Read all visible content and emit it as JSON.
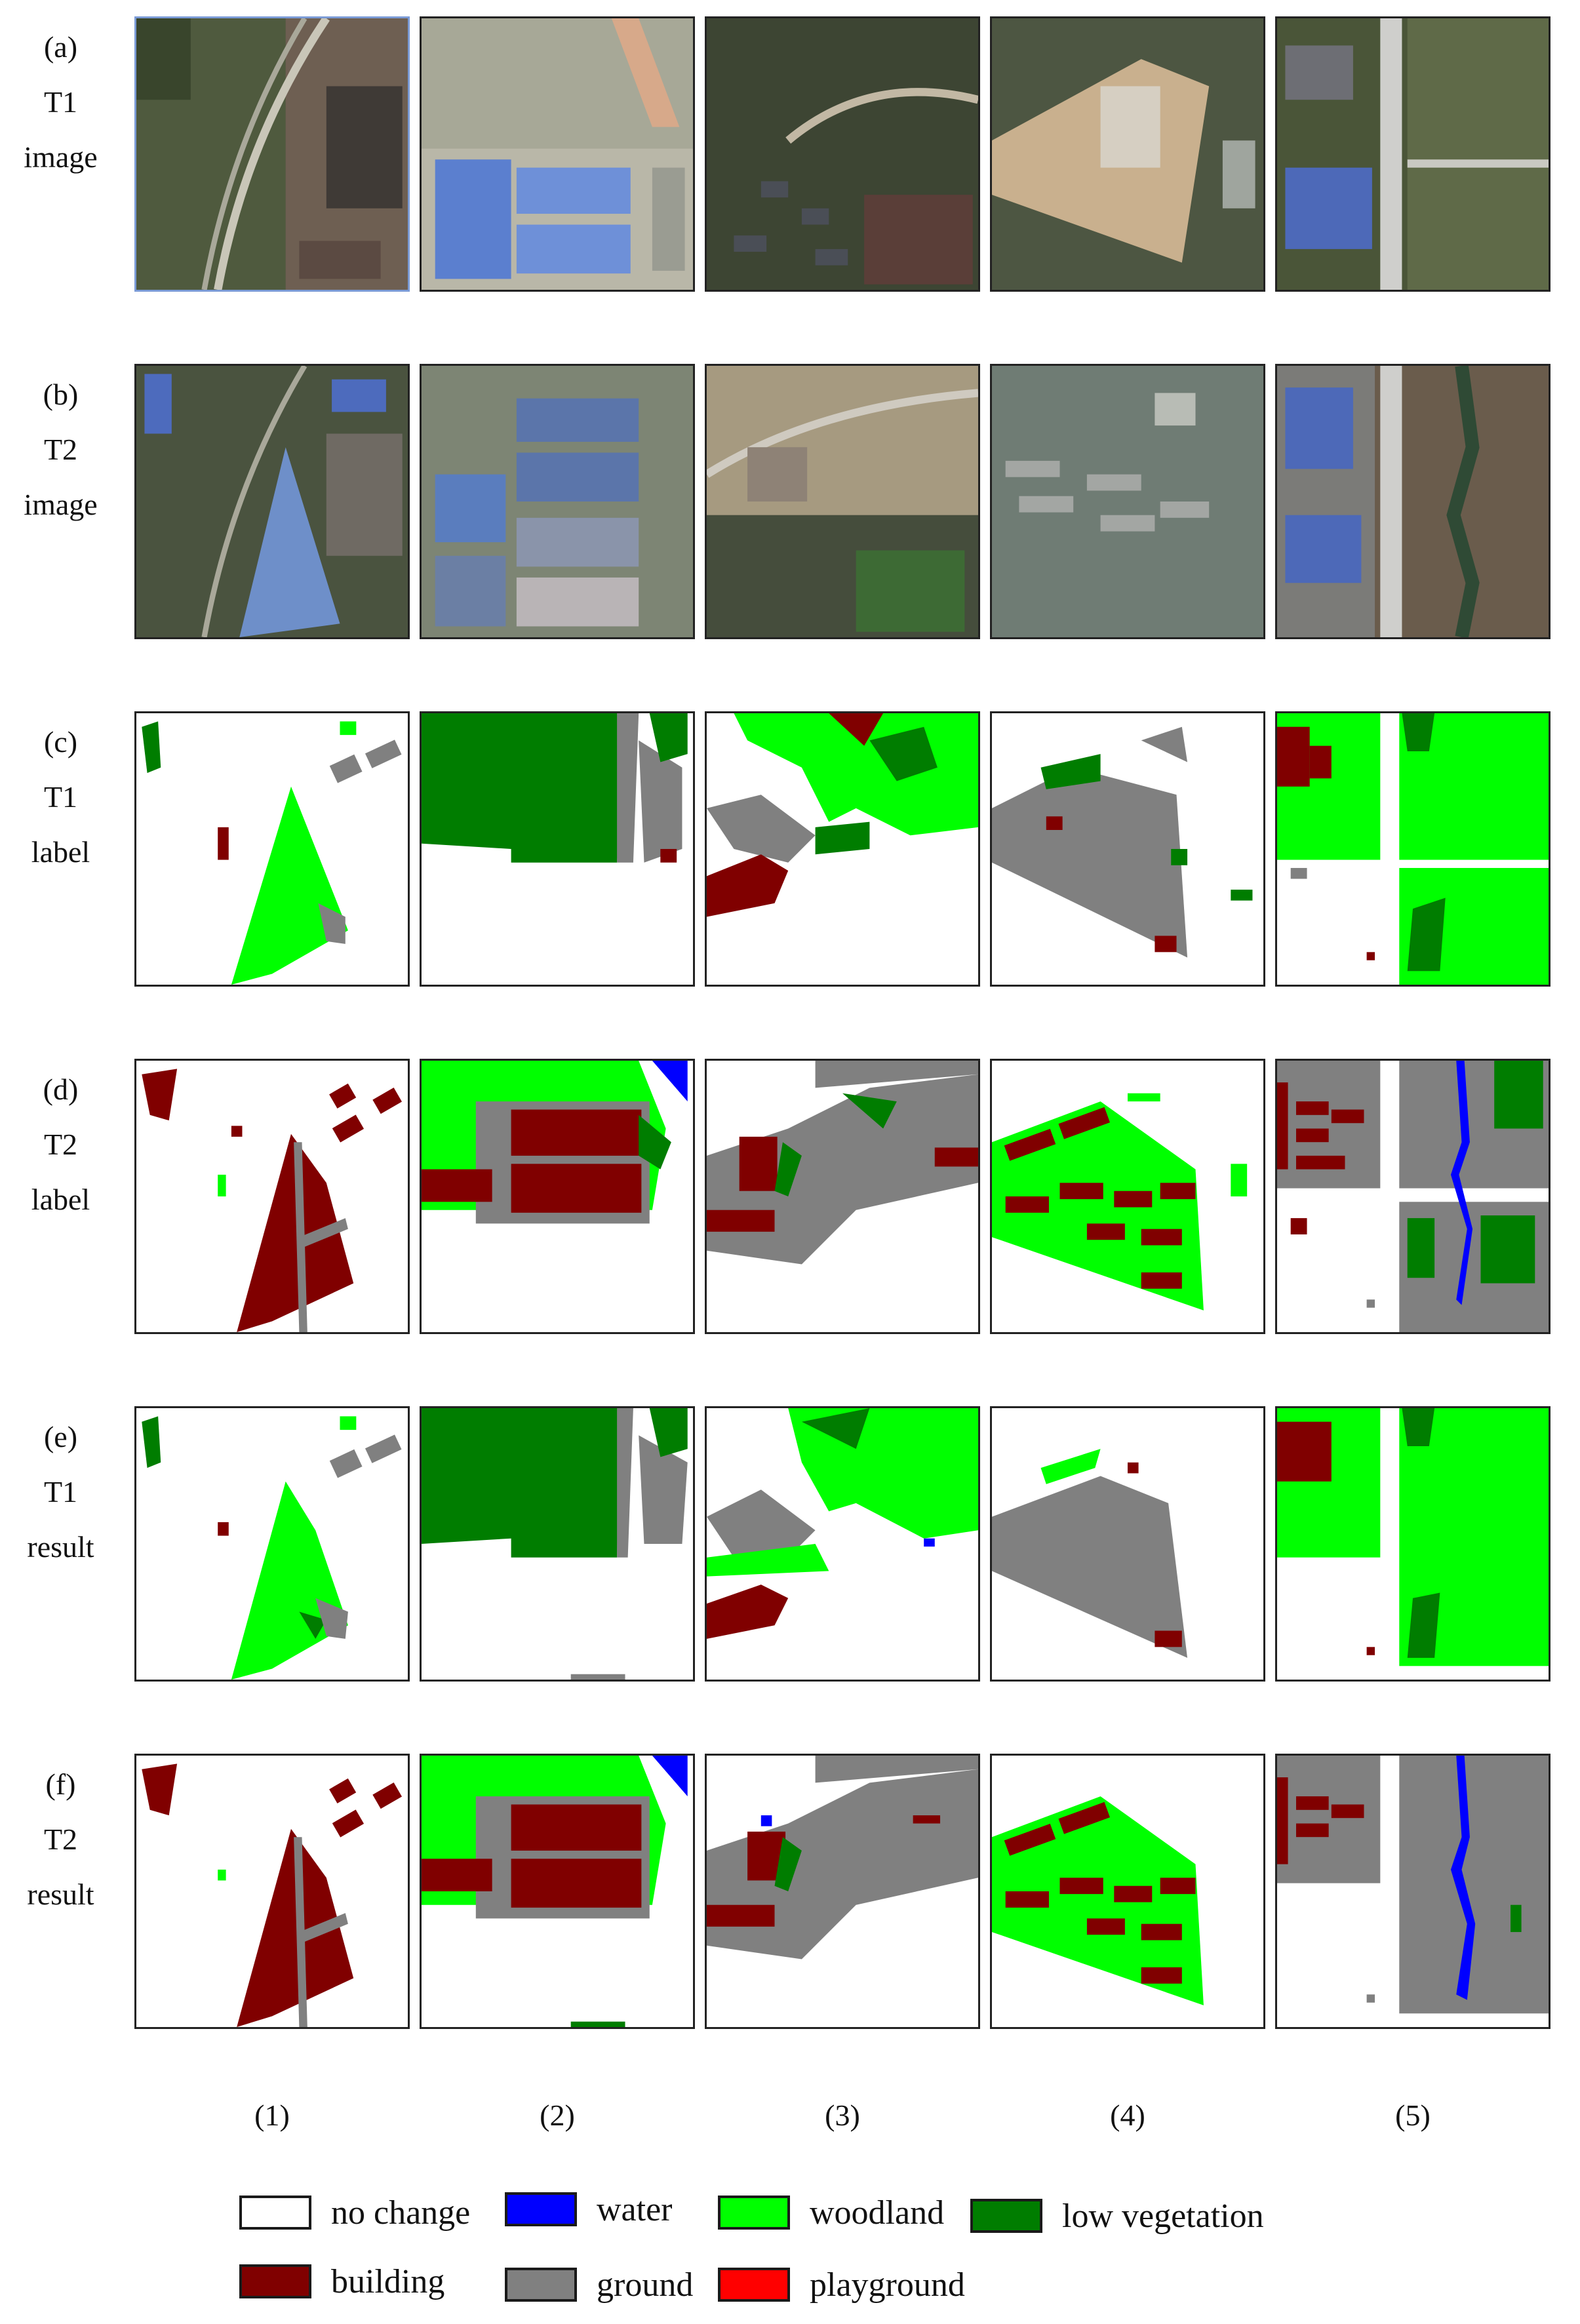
{
  "rows": [
    {
      "key": "a",
      "lines": [
        "(a)",
        "T1",
        "image"
      ]
    },
    {
      "key": "b",
      "lines": [
        "(b)",
        "T2",
        "image"
      ]
    },
    {
      "key": "c",
      "lines": [
        "(c)",
        "T1",
        "label"
      ]
    },
    {
      "key": "d",
      "lines": [
        "(d)",
        "T2",
        "label"
      ]
    },
    {
      "key": "e",
      "lines": [
        "(e)",
        "T1",
        "result"
      ]
    },
    {
      "key": "f",
      "lines": [
        "(f)",
        "T2",
        "result"
      ]
    }
  ],
  "columns": [
    "(1)",
    "(2)",
    "(3)",
    "(4)",
    "(5)"
  ],
  "legend": [
    {
      "label": "no change",
      "color": "#ffffff"
    },
    {
      "label": "water",
      "color": "#0000ff"
    },
    {
      "label": "woodland",
      "color": "#00ff00"
    },
    {
      "label": "low vegetation",
      "color": "#007d00"
    },
    {
      "label": "building",
      "color": "#800000"
    },
    {
      "label": "ground",
      "color": "#808080"
    },
    {
      "label": "playground",
      "color": "#ff0000"
    }
  ]
}
